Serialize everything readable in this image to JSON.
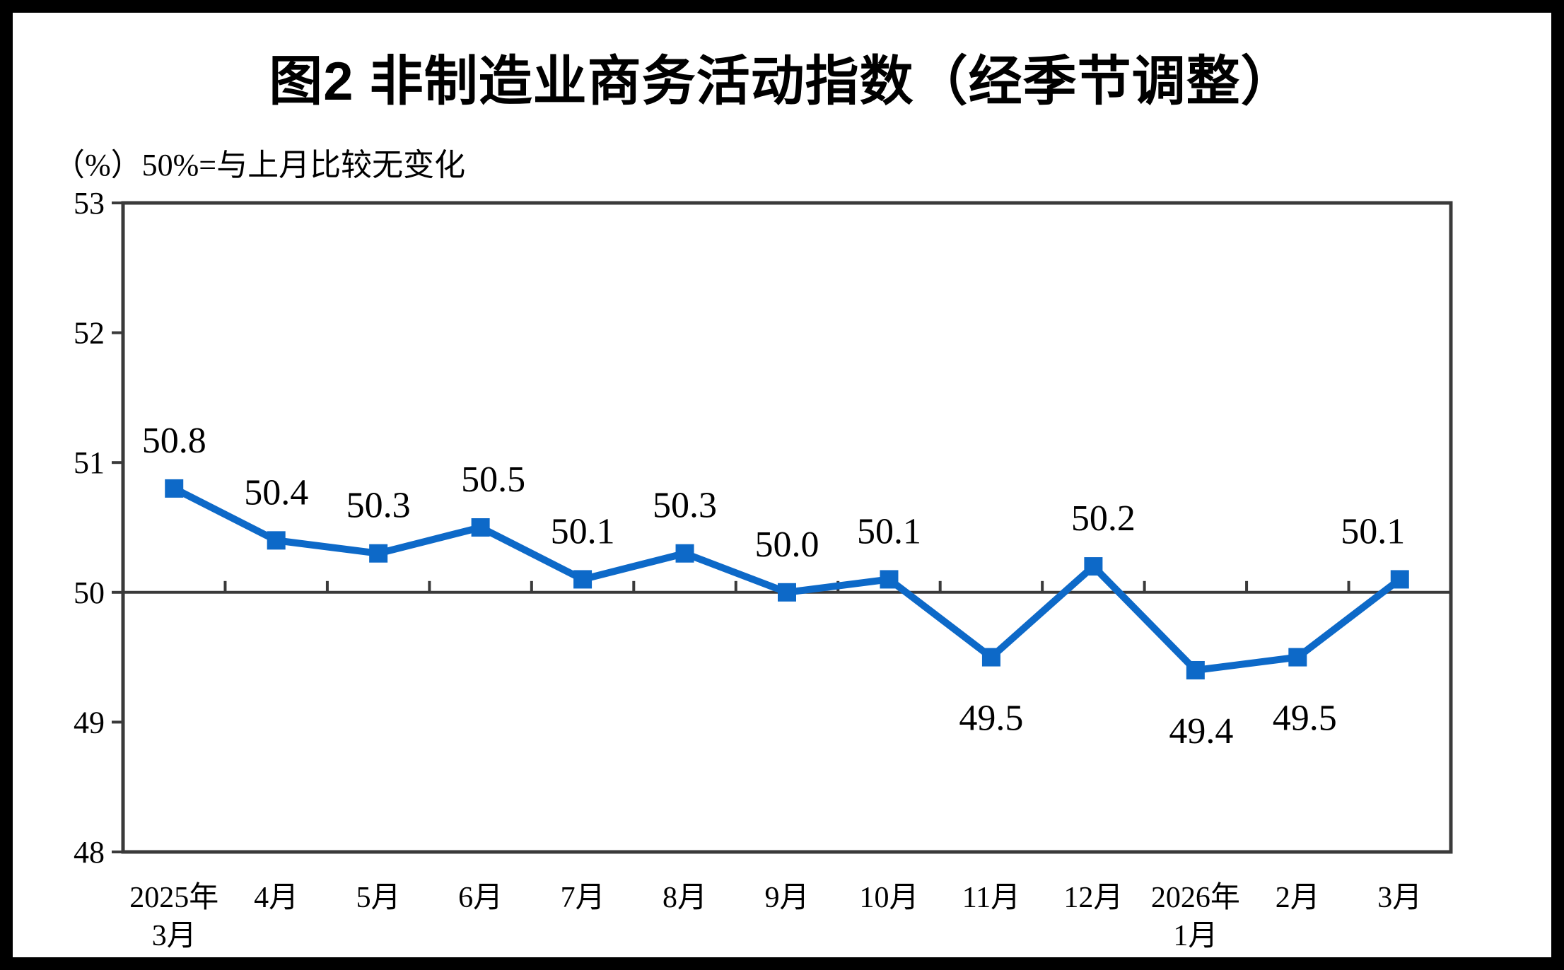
{
  "title": "图2  非制造业商务活动指数（经季节调整）",
  "unit_note": "（%）50%=与上月比较无变化",
  "colors": {
    "series_blue": "#0d69c8",
    "axis_dark": "#3a3a3a",
    "text_black": "#000000",
    "frame_black": "#000000",
    "background": "#ffffff"
  },
  "chart_data": {
    "type": "line",
    "title": "图2  非制造业商务活动指数（经季节调整）",
    "unit_note": "（%）50%=与上月比较无变化",
    "categories": [
      [
        "2025年",
        "3月"
      ],
      [
        "4月"
      ],
      [
        "5月"
      ],
      [
        "6月"
      ],
      [
        "7月"
      ],
      [
        "8月"
      ],
      [
        "9月"
      ],
      [
        "10月"
      ],
      [
        "11月"
      ],
      [
        "12月"
      ],
      [
        "2026年",
        "1月"
      ],
      [
        "2月"
      ],
      [
        "3月"
      ]
    ],
    "values": [
      50.8,
      50.4,
      50.3,
      50.5,
      50.1,
      50.3,
      50.0,
      50.1,
      49.5,
      50.2,
      49.4,
      49.5,
      50.1
    ],
    "data_labels": [
      "50.8",
      "50.4",
      "50.3",
      "50.5",
      "50.1",
      "50.3",
      "50.0",
      "50.1",
      "49.5",
      "50.2",
      "49.4",
      "49.5",
      "50.1"
    ],
    "label_dx": [
      0,
      0,
      0,
      18,
      0,
      0,
      0,
      0,
      0,
      14,
      8,
      10,
      -38
    ],
    "ylim": [
      48,
      53
    ],
    "yticks": [
      48,
      49,
      50,
      51,
      52,
      53
    ],
    "reference_line": 50,
    "grid": false,
    "legend": null,
    "marker": "square",
    "line_color": "#0d69c8",
    "xaxis_tick_position": "category-boundaries-on-reference-line"
  }
}
